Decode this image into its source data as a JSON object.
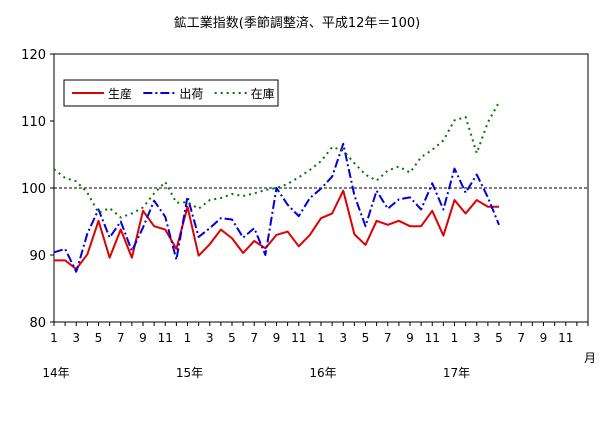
{
  "chart_data": {
    "type": "line",
    "title": "鉱工業指数(季節調整済、平成12年＝100)",
    "xlabel": "",
    "ylabel": "",
    "ylim": [
      80,
      120
    ],
    "yticks": [
      "80",
      "90",
      "100",
      "110",
      "120"
    ],
    "x_tick_labels": [
      "1",
      "",
      "3",
      "",
      "5",
      "",
      "7",
      "",
      "9",
      "",
      "11",
      "",
      "1",
      "",
      "3",
      "",
      "5",
      "",
      "7",
      "",
      "9",
      "",
      "11",
      "",
      "1",
      "",
      "3",
      "",
      "5",
      "",
      "7",
      "",
      "9",
      "",
      "11",
      "",
      "1",
      "",
      "3",
      "",
      "5",
      "",
      "7",
      "",
      "9",
      "",
      "11",
      ""
    ],
    "x_unit_label": "月",
    "year_labels": [
      {
        "label": "14年",
        "index": 0
      },
      {
        "label": "15年",
        "index": 12
      },
      {
        "label": "16年",
        "index": 24
      },
      {
        "label": "17年",
        "index": 36
      }
    ],
    "reference_line": 100,
    "x_slots": 48,
    "grid": false,
    "legend_position": "top-left",
    "series": [
      {
        "name": "生産",
        "color": "#e00000",
        "style": "solid",
        "values": [
          89.2,
          89.2,
          87.9,
          90.1,
          95.1,
          89.6,
          93.8,
          89.6,
          96.6,
          94.3,
          93.8,
          90.9,
          97.2,
          89.9,
          91.6,
          93.8,
          92.5,
          90.3,
          92.1,
          91.0,
          93.0,
          93.5,
          91.3,
          93.0,
          95.5,
          96.2,
          99.6,
          93.1,
          91.5,
          95.1,
          94.5,
          95.1,
          94.3,
          94.3,
          96.6,
          92.9,
          98.2,
          96.2,
          98.2,
          97.2,
          97.2
        ]
      },
      {
        "name": "出荷",
        "color": "#0000dd",
        "style": "dashdot",
        "values": [
          90.4,
          90.9,
          87.5,
          93.2,
          96.8,
          92.6,
          95.0,
          90.6,
          94.1,
          98.1,
          95.7,
          89.3,
          98.7,
          92.7,
          94.0,
          95.5,
          95.3,
          92.6,
          94.0,
          90.0,
          100.0,
          97.5,
          95.8,
          98.5,
          99.9,
          101.7,
          106.6,
          98.9,
          94.3,
          99.6,
          96.9,
          98.3,
          98.6,
          96.8,
          100.7,
          96.8,
          102.9,
          99.3,
          102.0,
          98.6,
          94.5
        ]
      },
      {
        "name": "在庫",
        "color": "#007700",
        "style": "dotted",
        "values": [
          102.8,
          101.5,
          101.0,
          99.3,
          96.3,
          97.0,
          95.6,
          96.2,
          97.1,
          99.2,
          100.9,
          97.8,
          97.9,
          96.9,
          98.2,
          98.5,
          99.1,
          98.8,
          99.2,
          99.7,
          100.0,
          100.6,
          101.6,
          102.7,
          104.0,
          106.1,
          105.6,
          103.7,
          102.0,
          101.1,
          102.6,
          103.2,
          102.3,
          104.6,
          105.7,
          107.1,
          110.1,
          110.6,
          105.2,
          109.8,
          112.8
        ]
      }
    ]
  }
}
